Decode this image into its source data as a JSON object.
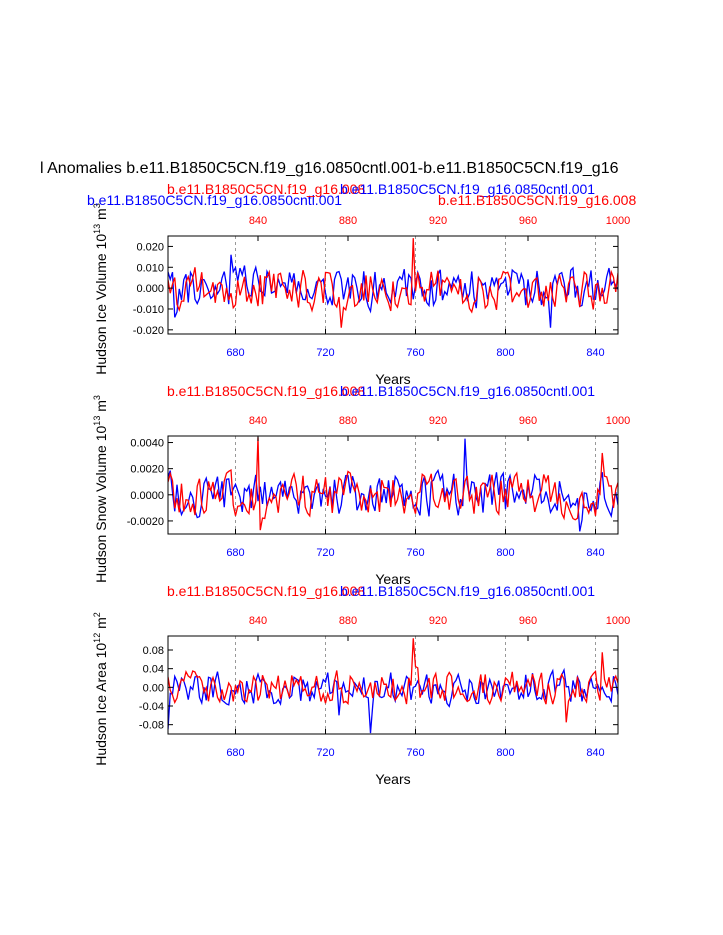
{
  "title": "l Anomalies b.e11.B1850C5CN.f19_g16.0850cntl.001-b.e11.B1850C5CN.f19_g16",
  "colors": {
    "case_a": "#0000ff",
    "case_b": "#ff0000",
    "axis": "#000000",
    "grid": "#808080"
  },
  "legend": {
    "case_a": "b.e11.B1850C5CN.f19_g16.0850cntl.001",
    "case_b": "b.e11.B1850C5CN.f19_g16.008"
  },
  "chart_data": [
    {
      "type": "line",
      "ylabel": "Hudson Ice Volume 10",
      "ylabel_sup": "13",
      "ylabel_unit": "m",
      "ylabel_unit_sup": "3",
      "xlabel": "Years",
      "ylim": [
        -0.022,
        0.025
      ],
      "yticks": [
        -0.02,
        -0.01,
        0.0,
        0.01,
        0.02
      ],
      "ytick_labels": [
        "-0.020",
        "-0.010",
        "0.000",
        "0.010",
        "0.020"
      ],
      "x_bottom": {
        "range": [
          650,
          850
        ],
        "ticks": [
          680,
          720,
          760,
          800,
          840
        ]
      },
      "x_top": {
        "range": [
          800,
          1000
        ],
        "ticks": [
          840,
          880,
          920,
          960,
          1000
        ]
      },
      "top_left_label": "b.e11.B1850C5CN.f19_g16.0850cntl.001",
      "top_left_label_color": "case_a",
      "top_left_label2": "b.e11.B1850C5CN.f19_g16.008",
      "top_center_label": "b.e11.B1850C5CN.f19_g16.0850cntl.001",
      "top_right_label": "b.e11.B1850C5CN.f19_g16.008",
      "series": [
        {
          "name": "b.e11.B1850C5CN.f19_g16.0850cntl.001",
          "color": "case_a",
          "axis": "bottom",
          "amp": 0.0085,
          "seed": 11,
          "spikes": [
            [
              820,
              -0.019
            ],
            [
              653,
              -0.014
            ],
            [
              678,
              0.016
            ]
          ]
        },
        {
          "name": "b.e11.B1850C5CN.f19_g16.008",
          "color": "case_b",
          "axis": "top",
          "amp": 0.0085,
          "seed": 23,
          "spikes": [
            [
              909,
              0.024
            ],
            [
              877,
              -0.019
            ],
            [
              812,
              0.01
            ]
          ]
        }
      ]
    },
    {
      "type": "line",
      "ylabel": "Hudson Snow Volume 10",
      "ylabel_sup": "13",
      "ylabel_unit": "m",
      "ylabel_unit_sup": "3",
      "xlabel": "Years",
      "ylim": [
        -0.003,
        0.0045
      ],
      "yticks": [
        -0.002,
        0.0,
        0.002,
        0.004
      ],
      "ytick_labels": [
        "-0.0020",
        "0.0000",
        "0.0020",
        "0.0040"
      ],
      "x_bottom": {
        "range": [
          650,
          850
        ],
        "ticks": [
          680,
          720,
          760,
          800,
          840
        ]
      },
      "x_top": {
        "range": [
          800,
          1000
        ],
        "ticks": [
          840,
          880,
          920,
          960,
          1000
        ]
      },
      "top_left_label": "b.e11.B1850C5CN.f19_g16.008",
      "top_left_label_color": "case_b",
      "top_center_label": "b.e11.B1850C5CN.f19_g16.0850cntl.001",
      "top_right_label": "",
      "series": [
        {
          "name": "b.e11.B1850C5CN.f19_g16.0850cntl.001",
          "color": "case_a",
          "axis": "bottom",
          "amp": 0.0014,
          "seed": 37,
          "spikes": [
            [
              782,
              0.0043
            ],
            [
              833,
              -0.0028
            ]
          ]
        },
        {
          "name": "b.e11.B1850C5CN.f19_g16.008",
          "color": "case_b",
          "axis": "top",
          "amp": 0.0014,
          "seed": 41,
          "spikes": [
            [
              840,
              0.0044
            ],
            [
              993,
              0.0032
            ],
            [
              841,
              -0.0027
            ]
          ]
        }
      ]
    },
    {
      "type": "line",
      "ylabel": "Hudson Ice Area 10",
      "ylabel_sup": "12",
      "ylabel_unit": "m",
      "ylabel_unit_sup": "2",
      "xlabel": "Years",
      "ylim": [
        -0.1,
        0.11
      ],
      "yticks": [
        -0.08,
        -0.04,
        0.0,
        0.04,
        0.08
      ],
      "ytick_labels": [
        "-0.08",
        "-0.04",
        "0.00",
        "0.04",
        "0.08"
      ],
      "x_bottom": {
        "range": [
          650,
          850
        ],
        "ticks": [
          680,
          720,
          760,
          800,
          840
        ]
      },
      "x_top": {
        "range": [
          800,
          1000
        ],
        "ticks": [
          840,
          880,
          920,
          960,
          1000
        ]
      },
      "top_left_label": "b.e11.B1850C5CN.f19_g16.008",
      "top_left_label_color": "case_b",
      "top_center_label": "b.e11.B1850C5CN.f19_g16.0850cntl.001",
      "top_right_label": "",
      "series": [
        {
          "name": "b.e11.B1850C5CN.f19_g16.0850cntl.001",
          "color": "case_a",
          "axis": "bottom",
          "amp": 0.03,
          "seed": 53,
          "spikes": [
            [
              740,
              -0.098
            ],
            [
              650,
              -0.09
            ],
            [
              726,
              -0.06
            ]
          ]
        },
        {
          "name": "b.e11.B1850C5CN.f19_g16.008",
          "color": "case_b",
          "axis": "top",
          "amp": 0.03,
          "seed": 67,
          "spikes": [
            [
              909,
              0.105
            ],
            [
              977,
              -0.075
            ],
            [
              993,
              0.075
            ]
          ]
        }
      ]
    }
  ]
}
